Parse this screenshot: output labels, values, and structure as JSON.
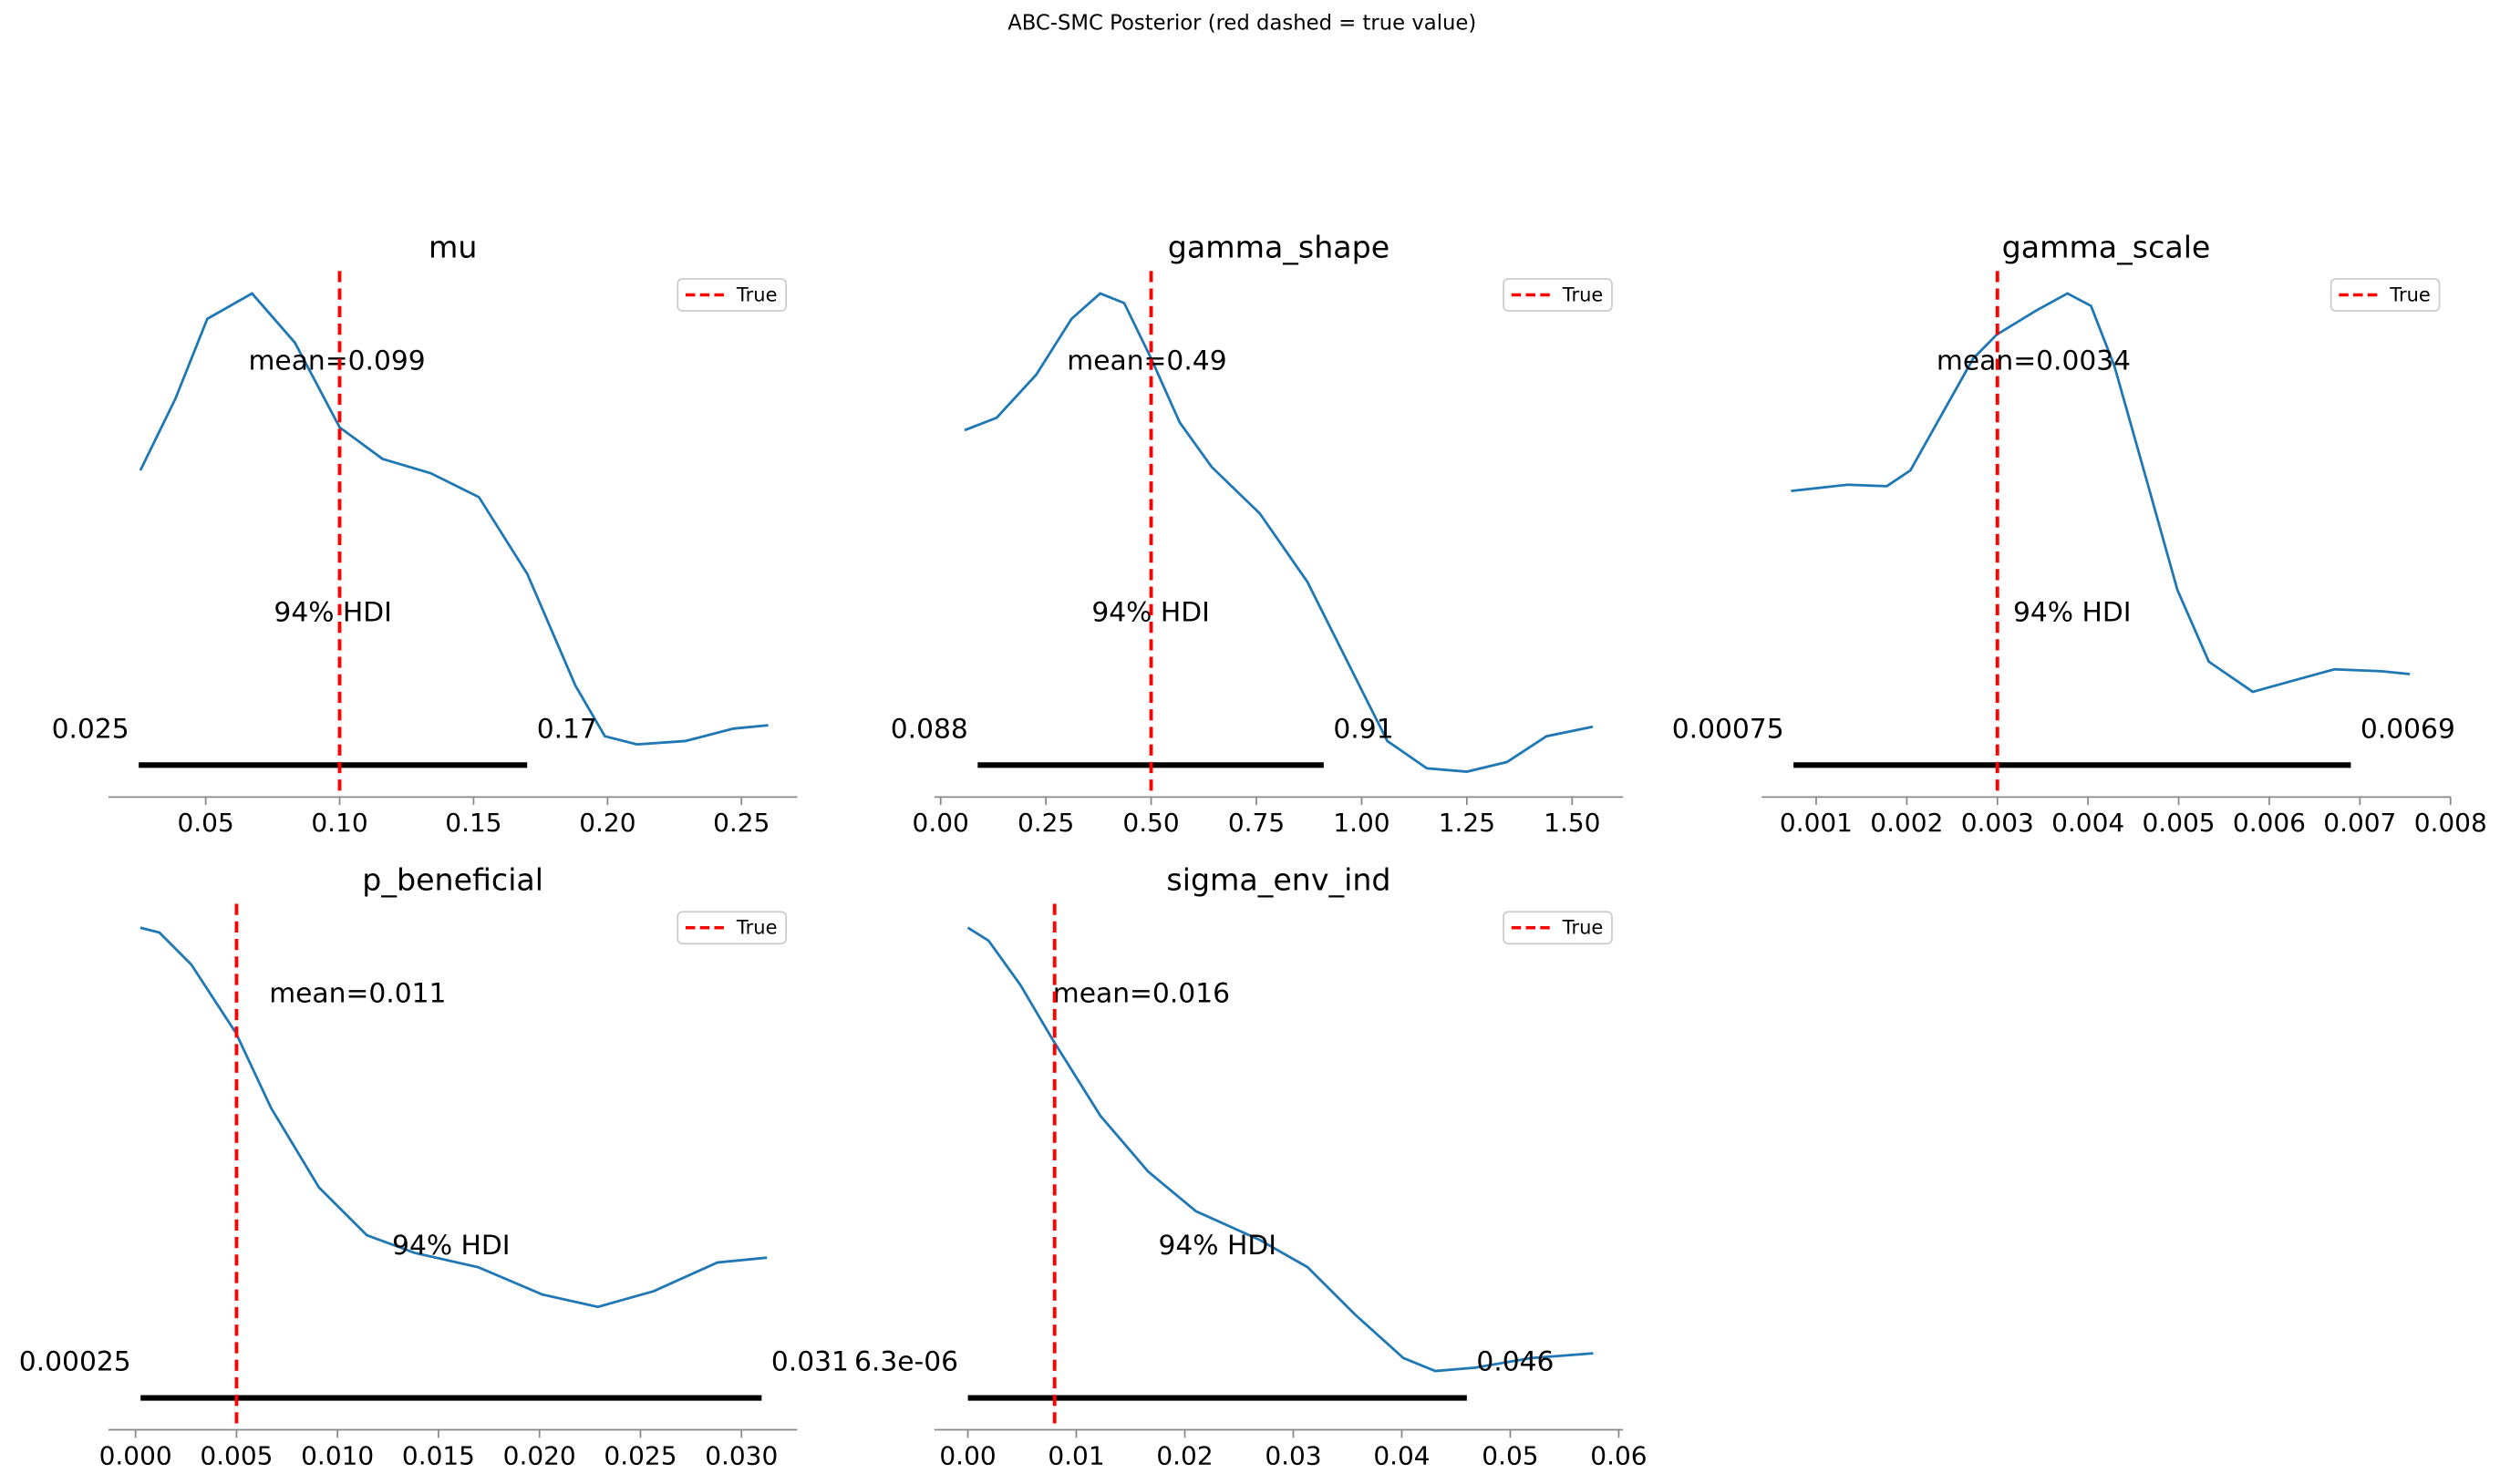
{
  "title": "ABC-SMC Posterior (red dashed = true value)",
  "chart_data": [
    {
      "type": "density",
      "title": "mu",
      "color": "#1f77b4",
      "x": [
        0.0256,
        0.0387,
        0.0506,
        0.0673,
        0.0833,
        0.1,
        0.116,
        0.134,
        0.152,
        0.17,
        0.188,
        0.199,
        0.211,
        0.229,
        0.247,
        0.26
      ],
      "values": [
        0.683,
        0.833,
        1.0,
        1.053,
        0.95,
        0.773,
        0.707,
        0.677,
        0.627,
        0.467,
        0.233,
        0.127,
        0.11,
        0.117,
        0.143,
        0.15
      ],
      "xlim": [
        0.0137,
        0.2708
      ],
      "ylim": [
        0,
        1.1
      ],
      "xticks": [
        0.05,
        {
          "value": 0.1,
          "label": "0.10"
        },
        0.15,
        {
          "value": 0.2,
          "label": "0.20"
        },
        0.25
      ],
      "mean": {
        "value": 0.099,
        "label": "mean=0.099"
      },
      "hdi_text": "94% HDI",
      "hdi": [
        0.025,
        0.17
      ],
      "true_value": 0.1,
      "true_color": "#ff0000",
      "legend": "True"
    },
    {
      "type": "density",
      "title": "gamma_shape",
      "color": "#1f77b4",
      "x": [
        0.057,
        0.133,
        0.227,
        0.311,
        0.379,
        0.436,
        0.5,
        0.568,
        0.644,
        0.758,
        0.871,
        0.985,
        1.061,
        1.155,
        1.25,
        1.345,
        1.439,
        1.549
      ],
      "values": [
        0.767,
        0.793,
        0.883,
        1.0,
        1.053,
        1.033,
        0.917,
        0.783,
        0.69,
        0.593,
        0.45,
        0.25,
        0.117,
        0.06,
        0.053,
        0.073,
        0.127,
        0.147
      ],
      "xlim": [
        -0.015,
        1.621
      ],
      "ylim": [
        0,
        1.1
      ],
      "xticks": [
        {
          "value": 0,
          "label": "0.00"
        },
        0.25,
        {
          "value": 0.5,
          "label": "0.50"
        },
        0.75,
        {
          "value": 1,
          "label": "1.00"
        },
        1.25,
        {
          "value": 1.5,
          "label": "1.50"
        }
      ],
      "mean": {
        "value": 0.49,
        "label": "mean=0.49"
      },
      "hdi_text": "94% HDI",
      "hdi": [
        0.088,
        0.91
      ],
      "true_value": 0.5,
      "true_color": "#ff0000",
      "legend": "True"
    },
    {
      "type": "density",
      "title": "gamma_scale",
      "color": "#1f77b4",
      "x": [
        0.000723,
        0.001347,
        0.00178,
        0.00204,
        0.002386,
        0.002733,
        0.002993,
        0.003426,
        0.003773,
        0.004033,
        0.004293,
        0.00464,
        0.004986,
        0.005333,
        0.005818,
        0.006199,
        0.006719,
        0.007239,
        0.007551
      ],
      "values": [
        0.64,
        0.653,
        0.65,
        0.683,
        0.8,
        0.917,
        0.967,
        1.017,
        1.053,
        1.027,
        0.9,
        0.667,
        0.433,
        0.283,
        0.22,
        0.24,
        0.267,
        0.263,
        0.257
      ],
      "xlim": [
        0.0004,
        0.008
      ],
      "ylim": [
        0,
        1.1
      ],
      "xticks": [
        0.001,
        0.002,
        0.003,
        0.004,
        0.005,
        0.006,
        0.007,
        0.008
      ],
      "mean": {
        "value": 0.0034,
        "label": "mean=0.0034"
      },
      "hdi_text": "94% HDI",
      "hdi": [
        0.00075,
        0.0069
      ],
      "true_value": 0.003,
      "true_color": "#ff0000",
      "legend": "True"
    },
    {
      "type": "density",
      "title": "p_beneficial",
      "color": "#1f77b4",
      "x": [
        0.00024,
        0.00118,
        0.00276,
        0.00497,
        0.00671,
        0.00908,
        0.01145,
        0.01382,
        0.01697,
        0.02013,
        0.02289,
        0.02566,
        0.02881,
        0.03126
      ],
      "values": [
        1.05,
        1.04,
        0.973,
        0.83,
        0.673,
        0.507,
        0.407,
        0.37,
        0.34,
        0.283,
        0.257,
        0.29,
        0.35,
        0.36
      ],
      "xlim": [
        -0.00134,
        0.03276
      ],
      "ylim": [
        0,
        1.1
      ],
      "xticks": [
        {
          "value": 0,
          "label": "0.000"
        },
        0.005,
        {
          "value": 0.01,
          "label": "0.010"
        },
        0.015,
        {
          "value": 0.02,
          "label": "0.020"
        },
        0.025,
        {
          "value": 0.03,
          "label": "0.030"
        }
      ],
      "mean": {
        "value": 0.011,
        "label": "mean=0.011"
      },
      "hdi_text": "94% HDI",
      "hdi": [
        0.00025,
        0.031
      ],
      "true_value": 0.005,
      "true_color": "#ff0000",
      "legend": "True"
    },
    {
      "type": "density",
      "title": "sigma_env_ind",
      "color": "#1f77b4",
      "x": [
        0,
        0.00191,
        0.00485,
        0.00779,
        0.01221,
        0.01662,
        0.02103,
        0.02691,
        0.03132,
        0.03574,
        0.04015,
        0.04309,
        0.04676,
        0.05191,
        0.05765
      ],
      "values": [
        1.05,
        1.023,
        0.93,
        0.817,
        0.657,
        0.54,
        0.457,
        0.397,
        0.34,
        0.24,
        0.15,
        0.123,
        0.13,
        0.15,
        0.16
      ],
      "xlim": [
        -0.00309,
        0.0604
      ],
      "ylim": [
        0,
        1.1
      ],
      "xticks": [
        {
          "value": 0,
          "label": "0.00"
        },
        0.01,
        0.02,
        0.03,
        0.04,
        0.05,
        0.06
      ],
      "mean": {
        "value": 0.016,
        "label": "mean=0.016"
      },
      "hdi_text": "94% HDI",
      "hdi": [
        {
          "value": 6.3e-06,
          "label": "6.3e-06"
        },
        0.046
      ],
      "true_value": 0.008,
      "true_color": "#ff0000",
      "legend": "True"
    }
  ]
}
